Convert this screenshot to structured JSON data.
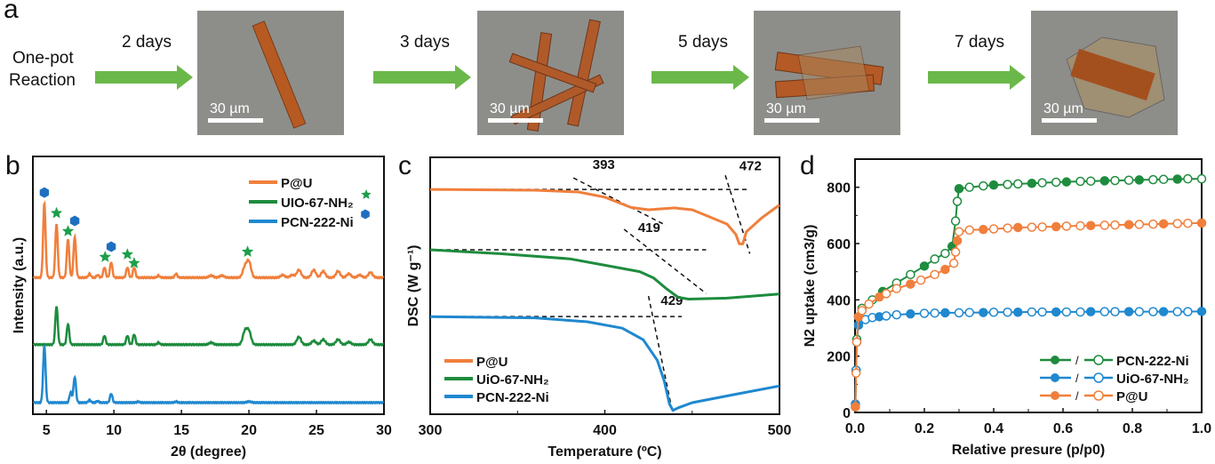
{
  "panel_a": {
    "label": "a",
    "start_text_1": "One-pot",
    "start_text_2": "Reaction",
    "steps": [
      {
        "arrow_label": "2 days",
        "scale_bar": "30 µm"
      },
      {
        "arrow_label": "3 days",
        "scale_bar": "30 µm"
      },
      {
        "arrow_label": "5 days",
        "scale_bar": "30 µm"
      },
      {
        "arrow_label": "7 days",
        "scale_bar": "30 µm"
      }
    ],
    "arrow_color": "#6bb84a"
  },
  "chart_data": [
    {
      "panel": "b",
      "type": "line",
      "title": "",
      "xlabel": "2θ (degree)",
      "ylabel": "Intensity (a.u.)",
      "xlim": [
        4,
        30
      ],
      "ylim": [
        0,
        100
      ],
      "xticks": [
        5,
        10,
        15,
        20,
        25,
        30
      ],
      "legend": "top-right",
      "series": [
        {
          "name": "P@U",
          "color": "#f07f3c",
          "baseline": 53,
          "peaks": [
            [
              4.85,
              29
            ],
            [
              5.75,
              21
            ],
            [
              6.6,
              15
            ],
            [
              7.1,
              16
            ],
            [
              8.2,
              1.5
            ],
            [
              8.8,
              1
            ],
            [
              9.3,
              4
            ],
            [
              9.8,
              6
            ],
            [
              11,
              4
            ],
            [
              11.5,
              4
            ],
            [
              13.3,
              0.8
            ],
            [
              14.6,
              1.5
            ],
            [
              17.2,
              0.8
            ],
            [
              18,
              0.8
            ],
            [
              19.7,
              4
            ],
            [
              20,
              6
            ],
            [
              22.5,
              1
            ],
            [
              23.2,
              1
            ],
            [
              23.7,
              3
            ],
            [
              24.8,
              3
            ],
            [
              25.5,
              2.5
            ],
            [
              26.6,
              2.5
            ],
            [
              27.4,
              1.5
            ],
            [
              28.2,
              1
            ],
            [
              29,
              2
            ]
          ]
        },
        {
          "name": "UIO-67-NH₂",
          "color": "#1e8c3e",
          "baseline": 27,
          "peaks": [
            [
              5.75,
              15
            ],
            [
              6.6,
              8
            ],
            [
              9.3,
              3.5
            ],
            [
              11,
              3.5
            ],
            [
              11.5,
              4
            ],
            [
              13.3,
              0.8
            ],
            [
              17.2,
              0.8
            ],
            [
              19.7,
              5
            ],
            [
              20,
              5
            ],
            [
              23.7,
              3
            ],
            [
              24.8,
              1.5
            ],
            [
              25.5,
              2
            ],
            [
              26.6,
              2
            ],
            [
              27.4,
              1
            ],
            [
              29,
              2
            ]
          ]
        },
        {
          "name": "PCN-222-Ni",
          "color": "#1f88cf",
          "baseline": 4.5,
          "peaks": [
            [
              4.85,
              22
            ],
            [
              6.8,
              4
            ],
            [
              7.1,
              10
            ],
            [
              8.2,
              1
            ],
            [
              8.8,
              0.6
            ],
            [
              9.8,
              3.5
            ],
            [
              11.8,
              0.4
            ],
            [
              14.6,
              0.4
            ],
            [
              20,
              0.4
            ]
          ]
        }
      ],
      "markers": [
        {
          "shape": "hexagon",
          "color": "#1f6fc0",
          "x": 4.85,
          "y": 86
        },
        {
          "shape": "star",
          "color": "#1e9e4a",
          "x": 5.75,
          "y": 78
        },
        {
          "shape": "star",
          "color": "#1e9e4a",
          "x": 6.6,
          "y": 71
        },
        {
          "shape": "hexagon",
          "color": "#1f6fc0",
          "x": 7.1,
          "y": 75
        },
        {
          "shape": "hexagon",
          "color": "#1f6fc0",
          "x": 9.8,
          "y": 65
        },
        {
          "shape": "star",
          "color": "#1e9e4a",
          "x": 9.35,
          "y": 61
        },
        {
          "shape": "star",
          "color": "#1e9e4a",
          "x": 11,
          "y": 62
        },
        {
          "shape": "star",
          "color": "#1e9e4a",
          "x": 11.5,
          "y": 58.6
        },
        {
          "shape": "star",
          "color": "#1e9e4a",
          "x": 19.9,
          "y": 63
        }
      ]
    },
    {
      "panel": "c",
      "type": "line",
      "title": "",
      "xlabel": "Temperature (ºC)",
      "ylabel": "DSC (W g⁻¹)",
      "xlim": [
        300,
        500
      ],
      "ylim": [
        0,
        100
      ],
      "xticks": [
        300,
        400,
        500
      ],
      "legend": "bottom-left",
      "series": [
        {
          "name": "P@U",
          "color": "#f07f3c",
          "points": [
            [
              300,
              87.5
            ],
            [
              360,
              87.2
            ],
            [
              385,
              86.5
            ],
            [
              400,
              84.5
            ],
            [
              415,
              80.5
            ],
            [
              425,
              79.6
            ],
            [
              440,
              80.3
            ],
            [
              450,
              79.6
            ],
            [
              460,
              76.8
            ],
            [
              470,
              74
            ],
            [
              475,
              70
            ],
            [
              477,
              66.3
            ],
            [
              479,
              66.3
            ],
            [
              481,
              71
            ],
            [
              490,
              76.5
            ],
            [
              500,
              81.5
            ]
          ]
        },
        {
          "name": "UiO-67-NH₂",
          "color": "#1e8c3e",
          "points": [
            [
              300,
              64
            ],
            [
              340,
              62.5
            ],
            [
              380,
              60.5
            ],
            [
              400,
              58
            ],
            [
              420,
              55.5
            ],
            [
              428,
              53
            ],
            [
              435,
              49
            ],
            [
              442,
              45.5
            ],
            [
              448,
              44.8
            ],
            [
              470,
              45.2
            ],
            [
              500,
              46.8
            ]
          ]
        },
        {
          "name": "PCN-222-Ni",
          "color": "#1f88cf",
          "points": [
            [
              300,
              38
            ],
            [
              360,
              37.5
            ],
            [
              390,
              36
            ],
            [
              410,
              33.5
            ],
            [
              422,
              29
            ],
            [
              430,
              21
            ],
            [
              434,
              13
            ],
            [
              437,
              4
            ],
            [
              439,
              1.5
            ],
            [
              442,
              2.5
            ],
            [
              450,
              4.5
            ],
            [
              475,
              7.8
            ],
            [
              500,
              11
            ]
          ]
        }
      ],
      "annotations": [
        {
          "text": "393",
          "x": 393,
          "y": 95.5,
          "lines": [
            [
              [
                300,
                87.5
              ],
              [
                482,
                87.5
              ]
            ],
            [
              [
                382,
                92
              ],
              [
                435,
                73.5
              ]
            ]
          ]
        },
        {
          "text": "472",
          "x": 477,
          "y": 95,
          "lines": [
            [
              [
                469,
                93
              ],
              [
                483,
                62.5
              ]
            ]
          ]
        },
        {
          "text": "419",
          "x": 419,
          "y": 71,
          "lines": [
            [
              [
                300,
                64
              ],
              [
                458,
                64
              ]
            ],
            [
              [
                411,
                72
              ],
              [
                458,
                47
              ]
            ]
          ]
        },
        {
          "text": "429",
          "x": 432,
          "y": 42.5,
          "lines": [
            [
              [
                300,
                38
              ],
              [
                444,
                38
              ]
            ],
            [
              [
                425,
                46
              ],
              [
                439,
                0
              ]
            ]
          ]
        }
      ]
    },
    {
      "panel": "d",
      "type": "scatter",
      "title": "",
      "xlabel": "Relative presure (p/p0)",
      "ylabel": "N2 uptake (cm3/g)",
      "xlim": [
        0,
        1
      ],
      "ylim": [
        0,
        900
      ],
      "xticks": [
        0,
        0.2,
        0.4,
        0.6,
        0.8,
        1.0
      ],
      "yticks": [
        0,
        200,
        400,
        600,
        800
      ],
      "legend": "bottom-right",
      "legend_separator": "/",
      "series": [
        {
          "name": "PCN-222-Ni",
          "color": "#1e8c3e",
          "points": [
            [
              0.001,
              20
            ],
            [
              0.003,
              150
            ],
            [
              0.005,
              260
            ],
            [
              0.01,
              340
            ],
            [
              0.02,
              370
            ],
            [
              0.05,
              400
            ],
            [
              0.08,
              430
            ],
            [
              0.12,
              460
            ],
            [
              0.16,
              490
            ],
            [
              0.2,
              520
            ],
            [
              0.23,
              545
            ],
            [
              0.26,
              565
            ],
            [
              0.28,
              590
            ],
            [
              0.29,
              680
            ],
            [
              0.295,
              750
            ],
            [
              0.3,
              795
            ],
            [
              0.33,
              800
            ],
            [
              0.37,
              805
            ],
            [
              0.4,
              808
            ],
            [
              0.44,
              810
            ],
            [
              0.47,
              812
            ],
            [
              0.51,
              814
            ],
            [
              0.54,
              816
            ],
            [
              0.58,
              818
            ],
            [
              0.61,
              819
            ],
            [
              0.65,
              821
            ],
            [
              0.68,
              822
            ],
            [
              0.72,
              823
            ],
            [
              0.75,
              824
            ],
            [
              0.79,
              825
            ],
            [
              0.82,
              826
            ],
            [
              0.86,
              827
            ],
            [
              0.89,
              828
            ],
            [
              0.93,
              829
            ],
            [
              0.96,
              830
            ],
            [
              1.0,
              830
            ]
          ]
        },
        {
          "name": "UiO-67-NH₂",
          "color": "#1f88cf",
          "points": [
            [
              0.001,
              30
            ],
            [
              0.003,
              150
            ],
            [
              0.005,
              250
            ],
            [
              0.01,
              310
            ],
            [
              0.03,
              330
            ],
            [
              0.05,
              337
            ],
            [
              0.07,
              340
            ],
            [
              0.09,
              343
            ],
            [
              0.12,
              347
            ],
            [
              0.16,
              350
            ],
            [
              0.2,
              352
            ],
            [
              0.23,
              353
            ],
            [
              0.26,
              354
            ],
            [
              0.3,
              354
            ],
            [
              0.33,
              355
            ],
            [
              0.37,
              355
            ],
            [
              0.4,
              356
            ],
            [
              0.44,
              356
            ],
            [
              0.47,
              356
            ],
            [
              0.51,
              357
            ],
            [
              0.54,
              357
            ],
            [
              0.58,
              357
            ],
            [
              0.61,
              357
            ],
            [
              0.65,
              357
            ],
            [
              0.68,
              358
            ],
            [
              0.72,
              358
            ],
            [
              0.75,
              358
            ],
            [
              0.79,
              358
            ],
            [
              0.82,
              358
            ],
            [
              0.86,
              358
            ],
            [
              0.89,
              358
            ],
            [
              0.93,
              358
            ],
            [
              0.96,
              358
            ],
            [
              1.0,
              359
            ]
          ]
        },
        {
          "name": "P@U",
          "color": "#f07f3c",
          "points": [
            [
              0.001,
              20
            ],
            [
              0.003,
              140
            ],
            [
              0.005,
              250
            ],
            [
              0.01,
              340
            ],
            [
              0.02,
              362
            ],
            [
              0.04,
              385
            ],
            [
              0.07,
              410
            ],
            [
              0.09,
              422
            ],
            [
              0.12,
              440
            ],
            [
              0.16,
              456
            ],
            [
              0.19,
              470
            ],
            [
              0.23,
              490
            ],
            [
              0.26,
              508
            ],
            [
              0.285,
              530
            ],
            [
              0.29,
              570
            ],
            [
              0.295,
              610
            ],
            [
              0.3,
              642
            ],
            [
              0.33,
              648
            ],
            [
              0.37,
              650
            ],
            [
              0.4,
              652
            ],
            [
              0.44,
              655
            ],
            [
              0.47,
              657
            ],
            [
              0.51,
              658
            ],
            [
              0.54,
              659
            ],
            [
              0.58,
              660
            ],
            [
              0.61,
              662
            ],
            [
              0.65,
              663
            ],
            [
              0.68,
              664
            ],
            [
              0.72,
              665
            ],
            [
              0.75,
              666
            ],
            [
              0.79,
              667
            ],
            [
              0.82,
              668
            ],
            [
              0.86,
              669
            ],
            [
              0.89,
              670
            ],
            [
              0.93,
              671
            ],
            [
              0.96,
              672
            ],
            [
              1.0,
              673
            ]
          ]
        }
      ]
    }
  ],
  "labels": {
    "b": "b",
    "c": "c",
    "d": "d"
  }
}
